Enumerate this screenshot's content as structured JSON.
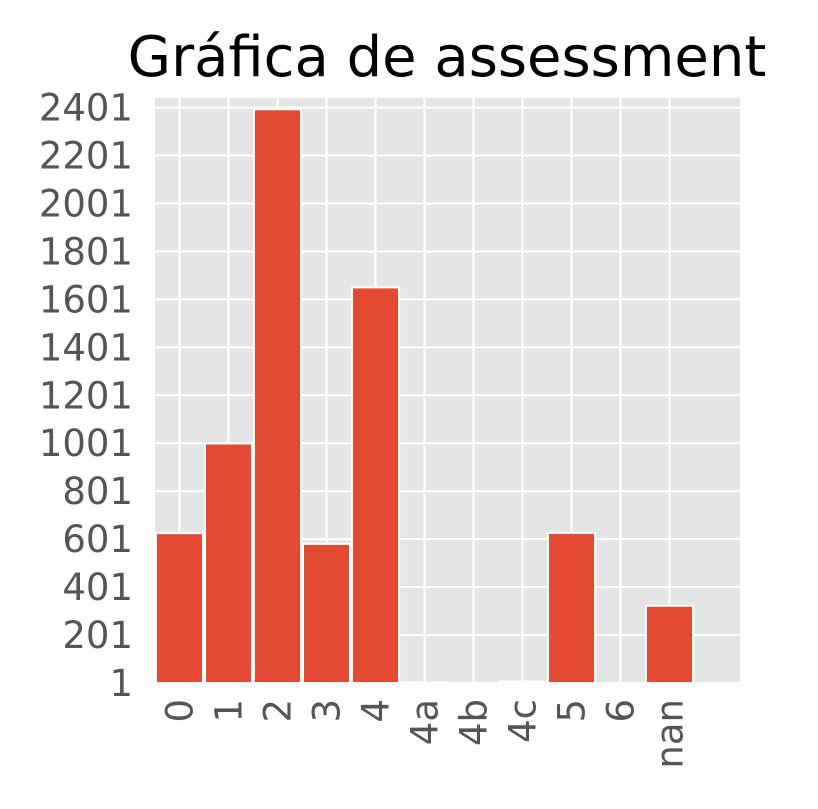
{
  "chart_data": {
    "type": "bar",
    "title": "Gráfica de assessment",
    "xlabel": "",
    "ylabel": "",
    "categories": [
      "0",
      "1",
      "2",
      "3",
      "4",
      "4a",
      "4b",
      "4c",
      "5",
      "6",
      "nan"
    ],
    "values": [
      626,
      1000,
      2394,
      581,
      1651,
      3,
      1,
      7,
      627,
      1,
      323
    ],
    "ylim": [
      1,
      2441
    ],
    "yticks": [
      "1",
      "201",
      "401",
      "601",
      "801",
      "1001",
      "1201",
      "1401",
      "1601",
      "1801",
      "2001",
      "2201",
      "2401"
    ],
    "bar_color": "#E24A33",
    "plot_background": "#E5E5E5",
    "grid_color": "#FFFFFF",
    "grid": true
  }
}
